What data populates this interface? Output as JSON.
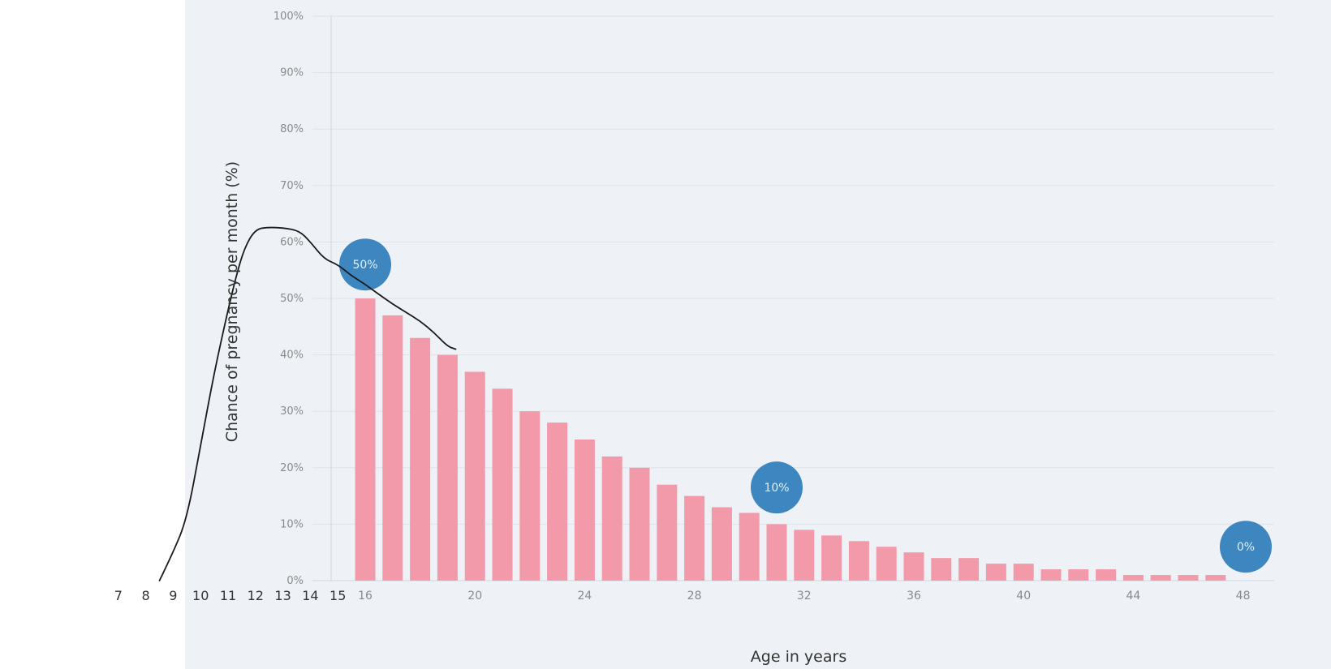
{
  "chart_data": {
    "type": "bar",
    "title": "",
    "xlabel": "Age in years",
    "ylabel": "Chance of pregnancy per month (%)",
    "ylim": [
      0,
      100
    ],
    "y_ticks": [
      "0%",
      "10%",
      "20%",
      "30%",
      "40%",
      "50%",
      "60%",
      "70%",
      "80%",
      "90%",
      "100%"
    ],
    "x_ticks": [
      "16",
      "20",
      "24",
      "28",
      "32",
      "36",
      "40",
      "44",
      "48"
    ],
    "extended_x_ticks": [
      "7",
      "8",
      "9",
      "10",
      "11",
      "12",
      "13",
      "14",
      "15"
    ],
    "grid": true,
    "categories": [
      16,
      17,
      18,
      19,
      20,
      21,
      22,
      23,
      24,
      25,
      26,
      27,
      28,
      29,
      30,
      31,
      32,
      33,
      34,
      35,
      36,
      37,
      38,
      39,
      40,
      41,
      42,
      43,
      44,
      45,
      46,
      47
    ],
    "values": [
      50,
      47,
      43,
      40,
      37,
      34,
      30,
      28,
      25,
      22,
      20,
      17,
      15,
      13,
      12,
      10,
      9,
      8,
      7,
      6,
      5,
      4,
      4,
      3,
      3,
      2,
      2,
      2,
      1,
      1,
      1,
      1
    ],
    "bar_color": "#f29aaa",
    "annotations": [
      {
        "label": "50%",
        "x": 16,
        "y": 56
      },
      {
        "label": "10%",
        "x": 31,
        "y": 16.5
      },
      {
        "label": "0%",
        "x": 48.1,
        "y": 6
      }
    ],
    "annotation_color": "#3d86c0",
    "hand_drawn_curve": {
      "color": "#1a1a1a",
      "points": [
        [
          8.5,
          0
        ],
        [
          9,
          5
        ],
        [
          9.5,
          11
        ],
        [
          10,
          24
        ],
        [
          10.5,
          37
        ],
        [
          11,
          48
        ],
        [
          11.3,
          54
        ],
        [
          11.6,
          59
        ],
        [
          12,
          62.3
        ],
        [
          12.5,
          62.6
        ],
        [
          13,
          62.5
        ],
        [
          13.6,
          62
        ],
        [
          14,
          60
        ],
        [
          14.5,
          57
        ],
        [
          15,
          56
        ],
        [
          15.5,
          54
        ],
        [
          16,
          52.5
        ],
        [
          16.5,
          50.7
        ],
        [
          17,
          49
        ],
        [
          17.5,
          47.5
        ],
        [
          18,
          46
        ],
        [
          18.5,
          44
        ],
        [
          19,
          41.5
        ],
        [
          19.3,
          41
        ]
      ]
    }
  }
}
